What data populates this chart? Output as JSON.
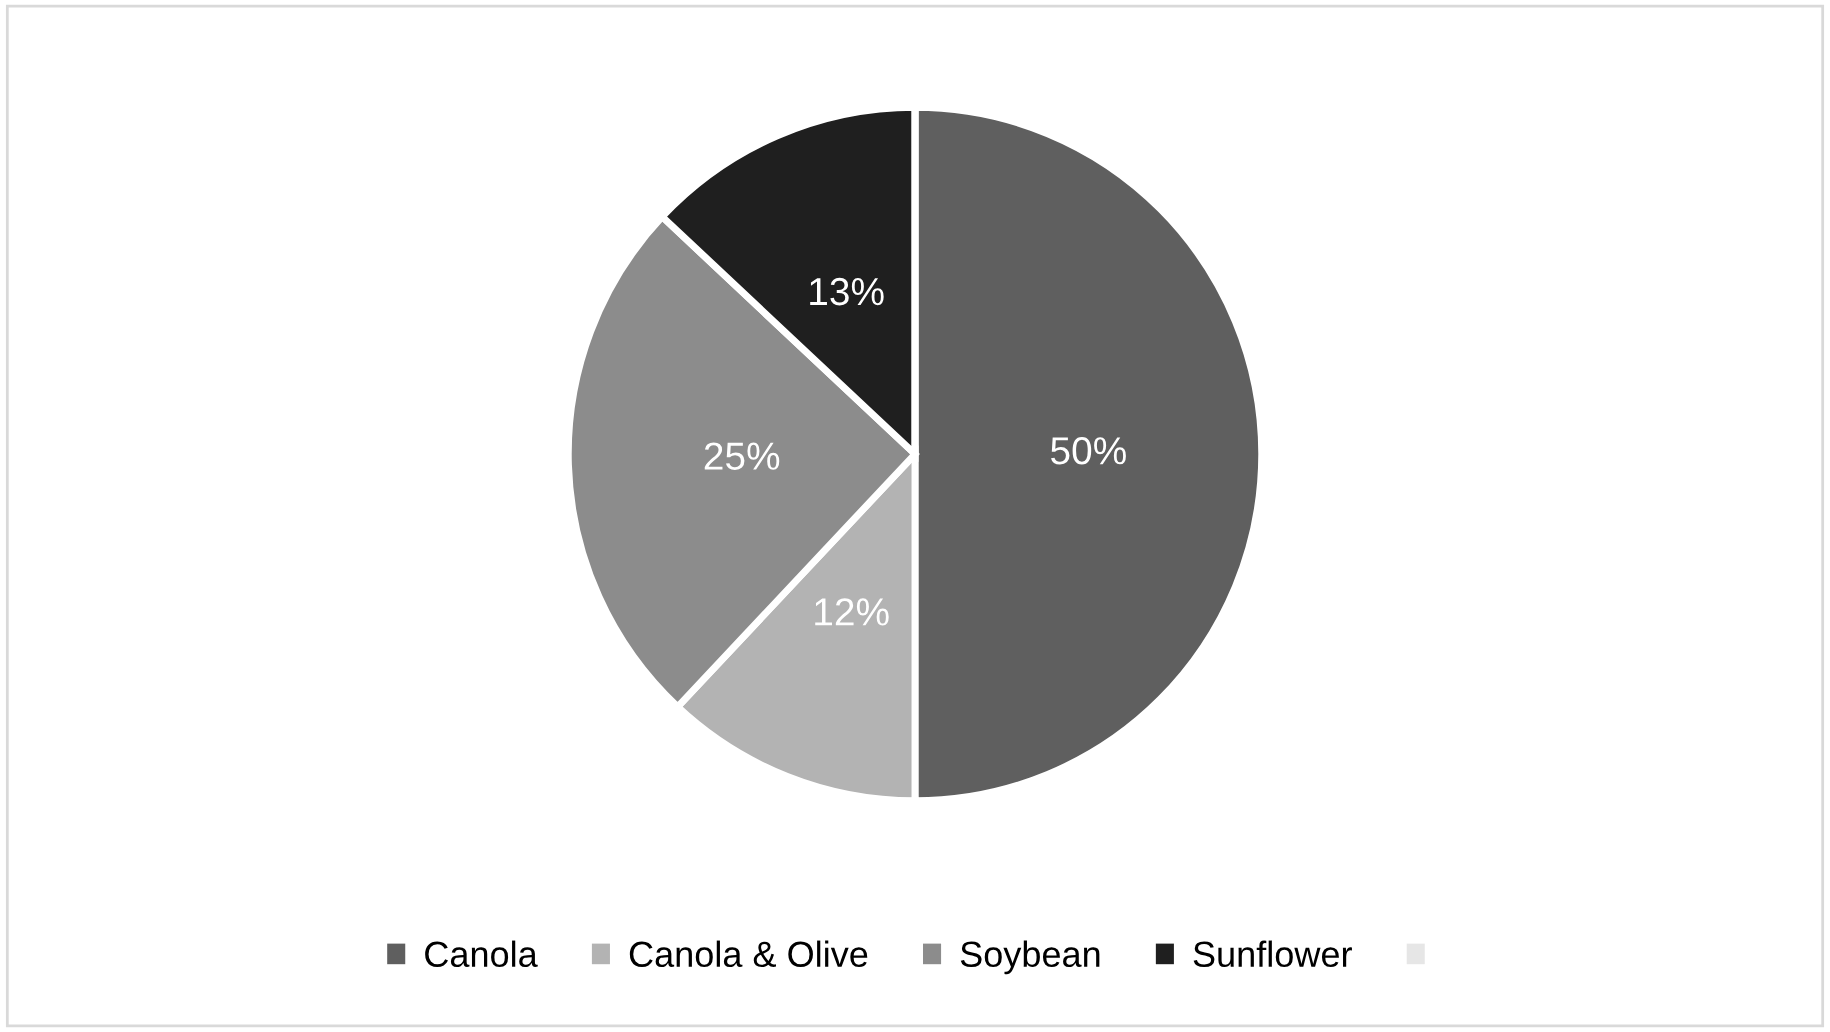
{
  "chart_data": {
    "type": "pie",
    "categories": [
      "Canola",
      "Canola & Olive",
      "Soybean",
      "Sunflower",
      null
    ],
    "values": [
      50,
      12,
      25,
      13,
      0
    ],
    "colors": [
      "#5f5f5f",
      "#b3b3b3",
      "#8c8c8c",
      "#1f1f1f",
      "#e6e6e6"
    ],
    "value_labels": [
      "50%",
      "12%",
      "25%",
      "13%",
      null
    ],
    "legend": "bottom"
  }
}
